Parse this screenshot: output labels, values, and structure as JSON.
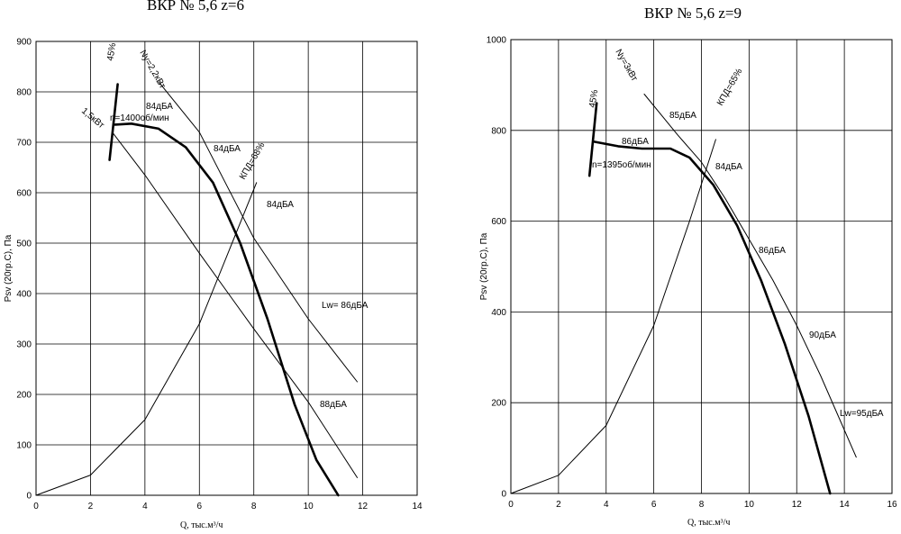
{
  "charts": [
    {
      "title": "ВКР № 5,6 z=6",
      "xlabel": "Q, тыс.м³/ч",
      "ylabel": "Psv (20гр.С), Па",
      "xlim": [
        0,
        14
      ],
      "ylim": [
        0,
        900
      ],
      "xticks": [
        0,
        2,
        4,
        6,
        8,
        10,
        12,
        14
      ],
      "yticks": [
        0,
        100,
        200,
        300,
        400,
        500,
        600,
        700,
        800,
        900
      ],
      "annotations": [
        "Ny=2,2кВт",
        "45%",
        "1,5кВт",
        "84дБА",
        "n=1400об/мин",
        "84дБА",
        "КПД=68%",
        "84дБА",
        "Lw= 86дБА",
        "88дБА"
      ]
    },
    {
      "title": "ВКР № 5,6 z=9",
      "xlabel": "Q, тыс.м³/ч",
      "ylabel": "Psv (20гр.С), Па",
      "xlim": [
        0,
        16
      ],
      "ylim": [
        0,
        1000
      ],
      "xticks": [
        0,
        2,
        4,
        6,
        8,
        10,
        12,
        14,
        16
      ],
      "yticks": [
        0,
        200,
        400,
        600,
        800,
        1000
      ],
      "annotations": [
        "Ny=3кВт",
        "45%",
        "85дБА",
        "КПД=65%",
        "86дБА",
        "n=1395об/мин",
        "84дБА",
        "86дБА",
        "90дБА",
        "Lw=95дБА"
      ]
    }
  ],
  "chart_data": [
    {
      "type": "line",
      "title": "ВКР № 5,6 z=6",
      "xlabel": "Q, тыс.м³/ч",
      "ylabel": "Psv (20гр.С), Па",
      "xlim": [
        0,
        14
      ],
      "ylim": [
        0,
        900
      ],
      "grid": true,
      "series": [
        {
          "style": "bold",
          "x": [
            2.9,
            3.5,
            4.5,
            5.5,
            6.5,
            7.5,
            8.5,
            9.5,
            10.3,
            11.1
          ],
          "y": [
            735,
            737,
            727,
            690,
            620,
            500,
            350,
            180,
            70,
            0
          ]
        },
        {
          "style": "thin",
          "x": [
            4.5,
            6,
            8,
            10,
            11.8
          ],
          "y": [
            820,
            720,
            510,
            350,
            225
          ]
        },
        {
          "style": "thin",
          "x": [
            2.8,
            4,
            6,
            8,
            10,
            11.8
          ],
          "y": [
            720,
            635,
            480,
            330,
            185,
            35
          ]
        },
        {
          "style": "thin",
          "x": [
            0,
            2,
            4,
            6,
            7.5,
            8.1
          ],
          "y": [
            0,
            40,
            150,
            340,
            540,
            620
          ]
        },
        {
          "style": "bold",
          "x": [
            2.7,
            3.0
          ],
          "y": [
            665,
            815
          ]
        }
      ]
    },
    {
      "type": "line",
      "title": "ВКР № 5,6 z=9",
      "xlabel": "Q, тыс.м³/ч",
      "ylabel": "Psv (20гр.С), Па",
      "xlim": [
        0,
        16
      ],
      "ylim": [
        0,
        1000
      ],
      "grid": true,
      "series": [
        {
          "style": "bold",
          "x": [
            3.5,
            4.5,
            5.5,
            6.7,
            7.5,
            8.5,
            9.5,
            10.5,
            11.5,
            12.5,
            13.4
          ],
          "y": [
            775,
            765,
            760,
            760,
            740,
            680,
            590,
            470,
            330,
            170,
            0
          ]
        },
        {
          "style": "thin",
          "x": [
            5.6,
            7,
            8,
            9,
            10,
            11,
            12,
            13,
            14.5
          ],
          "y": [
            880,
            790,
            730,
            650,
            560,
            470,
            370,
            260,
            80
          ]
        },
        {
          "style": "thin",
          "x": [
            0,
            2,
            4,
            6,
            7.5,
            8.6
          ],
          "y": [
            0,
            40,
            150,
            370,
            600,
            780
          ]
        },
        {
          "style": "bold",
          "x": [
            3.3,
            3.6
          ],
          "y": [
            700,
            860
          ]
        }
      ]
    }
  ]
}
